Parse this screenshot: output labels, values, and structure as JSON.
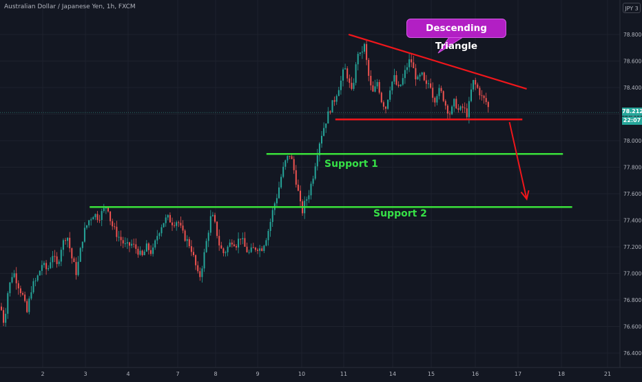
{
  "header": {
    "symbol_title": "Australian Dollar / Japanese Yen, 1h, FXCM",
    "currency_badge": "JPY 3"
  },
  "price_tags": {
    "last_price": "78.212",
    "countdown": "22:07"
  },
  "annotations": {
    "callout": "Descending Triangle",
    "support_1": "Support 1",
    "support_2": "Support 2"
  },
  "colors": {
    "background": "#131722",
    "grid": "#1e222d",
    "up_candle": "#26a69a",
    "down_candle": "#ef5350",
    "resistance_line": "#f0161b",
    "support_line": "#3ae23a",
    "callout": "#b21fc4",
    "axis_text": "#b2b5be"
  },
  "chart_data": {
    "type": "candlestick",
    "title": "Australian Dollar / Japanese Yen, 1h, FXCM",
    "ylim": [
      76.3,
      78.96
    ],
    "x_ticks": [
      "2",
      "3",
      "4",
      "7",
      "8",
      "9",
      "10",
      "11",
      "14",
      "15",
      "16",
      "17",
      "18",
      "21"
    ],
    "y_ticks": [
      76.4,
      76.6,
      76.8,
      77.0,
      77.2,
      77.4,
      77.6,
      77.8,
      78.0,
      78.2,
      78.4,
      78.6,
      78.8
    ],
    "last_price": 78.212,
    "grid": true,
    "price_path": [
      [
        0,
        76.75
      ],
      [
        5,
        76.62
      ],
      [
        10,
        76.85
      ],
      [
        18,
        77.02
      ],
      [
        25,
        76.92
      ],
      [
        32,
        76.83
      ],
      [
        38,
        76.7
      ],
      [
        45,
        76.9
      ],
      [
        52,
        76.95
      ],
      [
        60,
        77.07
      ],
      [
        68,
        77.02
      ],
      [
        75,
        77.15
      ],
      [
        82,
        77.05
      ],
      [
        88,
        77.2
      ],
      [
        96,
        77.3
      ],
      [
        103,
        77.12
      ],
      [
        110,
        77.0
      ],
      [
        115,
        77.15
      ],
      [
        120,
        77.3
      ],
      [
        128,
        77.4
      ],
      [
        135,
        77.45
      ],
      [
        142,
        77.42
      ],
      [
        150,
        77.48
      ],
      [
        155,
        77.52
      ],
      [
        160,
        77.38
      ],
      [
        168,
        77.3
      ],
      [
        175,
        77.25
      ],
      [
        182,
        77.2
      ],
      [
        190,
        77.22
      ],
      [
        198,
        77.18
      ],
      [
        205,
        77.12
      ],
      [
        212,
        77.2
      ],
      [
        220,
        77.15
      ],
      [
        228,
        77.3
      ],
      [
        235,
        77.38
      ],
      [
        242,
        77.42
      ],
      [
        250,
        77.38
      ],
      [
        257,
        77.4
      ],
      [
        264,
        77.3
      ],
      [
        270,
        77.25
      ],
      [
        276,
        77.2
      ],
      [
        282,
        77.08
      ],
      [
        288,
        76.95
      ],
      [
        294,
        77.1
      ],
      [
        300,
        77.28
      ],
      [
        306,
        77.45
      ],
      [
        312,
        77.35
      ],
      [
        318,
        77.2
      ],
      [
        324,
        77.15
      ],
      [
        330,
        77.2
      ],
      [
        336,
        77.25
      ],
      [
        342,
        77.22
      ],
      [
        348,
        77.28
      ],
      [
        354,
        77.2
      ],
      [
        360,
        77.15
      ],
      [
        366,
        77.18
      ],
      [
        372,
        77.2
      ],
      [
        378,
        77.18
      ],
      [
        384,
        77.25
      ],
      [
        390,
        77.35
      ],
      [
        396,
        77.5
      ],
      [
        402,
        77.6
      ],
      [
        408,
        77.75
      ],
      [
        414,
        77.85
      ],
      [
        420,
        77.9
      ],
      [
        424,
        77.82
      ],
      [
        428,
        77.72
      ],
      [
        433,
        77.58
      ],
      [
        437,
        77.45
      ],
      [
        441,
        77.52
      ],
      [
        447,
        77.6
      ],
      [
        453,
        77.72
      ],
      [
        459,
        77.9
      ],
      [
        464,
        78.02
      ],
      [
        469,
        78.1
      ],
      [
        474,
        78.18
      ],
      [
        479,
        78.25
      ],
      [
        484,
        78.3
      ],
      [
        489,
        78.38
      ],
      [
        494,
        78.45
      ],
      [
        499,
        78.55
      ],
      [
        504,
        78.48
      ],
      [
        509,
        78.35
      ],
      [
        514,
        78.5
      ],
      [
        519,
        78.68
      ],
      [
        523,
        78.62
      ],
      [
        527,
        78.75
      ],
      [
        531,
        78.6
      ],
      [
        536,
        78.42
      ],
      [
        541,
        78.35
      ],
      [
        547,
        78.45
      ],
      [
        553,
        78.3
      ],
      [
        559,
        78.25
      ],
      [
        565,
        78.4
      ],
      [
        571,
        78.48
      ],
      [
        577,
        78.38
      ],
      [
        583,
        78.45
      ],
      [
        589,
        78.55
      ],
      [
        595,
        78.62
      ],
      [
        600,
        78.52
      ],
      [
        605,
        78.45
      ],
      [
        611,
        78.5
      ],
      [
        617,
        78.4
      ],
      [
        623,
        78.45
      ],
      [
        629,
        78.3
      ],
      [
        635,
        78.38
      ],
      [
        641,
        78.35
      ],
      [
        647,
        78.25
      ],
      [
        653,
        78.2
      ],
      [
        659,
        78.3
      ],
      [
        665,
        78.22
      ],
      [
        671,
        78.25
      ],
      [
        677,
        78.2
      ],
      [
        681,
        78.3
      ],
      [
        685,
        78.45
      ],
      [
        689,
        78.42
      ],
      [
        694,
        78.38
      ],
      [
        699,
        78.32
      ],
      [
        704,
        78.3
      ],
      [
        710,
        78.22
      ]
    ],
    "drawings": [
      {
        "name": "Descending Triangle upper trendline",
        "type": "trendline",
        "color": "#f0161b",
        "start": [
          11.3,
          78.8
        ],
        "end": [
          17.2,
          78.39
        ]
      },
      {
        "name": "Descending Triangle base",
        "type": "horizontal_segment",
        "color": "#f0161b",
        "value": 78.16,
        "from": 10.8,
        "to": 17.1
      },
      {
        "name": "Support 1",
        "type": "horizontal_segment",
        "color": "#3ae23a",
        "value": 77.9,
        "from": 9.2,
        "to": 18.1
      },
      {
        "name": "Support 2",
        "type": "horizontal_segment",
        "color": "#3ae23a",
        "value": 77.5,
        "from": 3.1,
        "to": 18.7
      },
      {
        "name": "Projected breakdown",
        "type": "arrow",
        "color": "#f0161b",
        "start": [
          16.8,
          78.14
        ],
        "end": [
          17.2,
          77.56
        ]
      }
    ]
  }
}
